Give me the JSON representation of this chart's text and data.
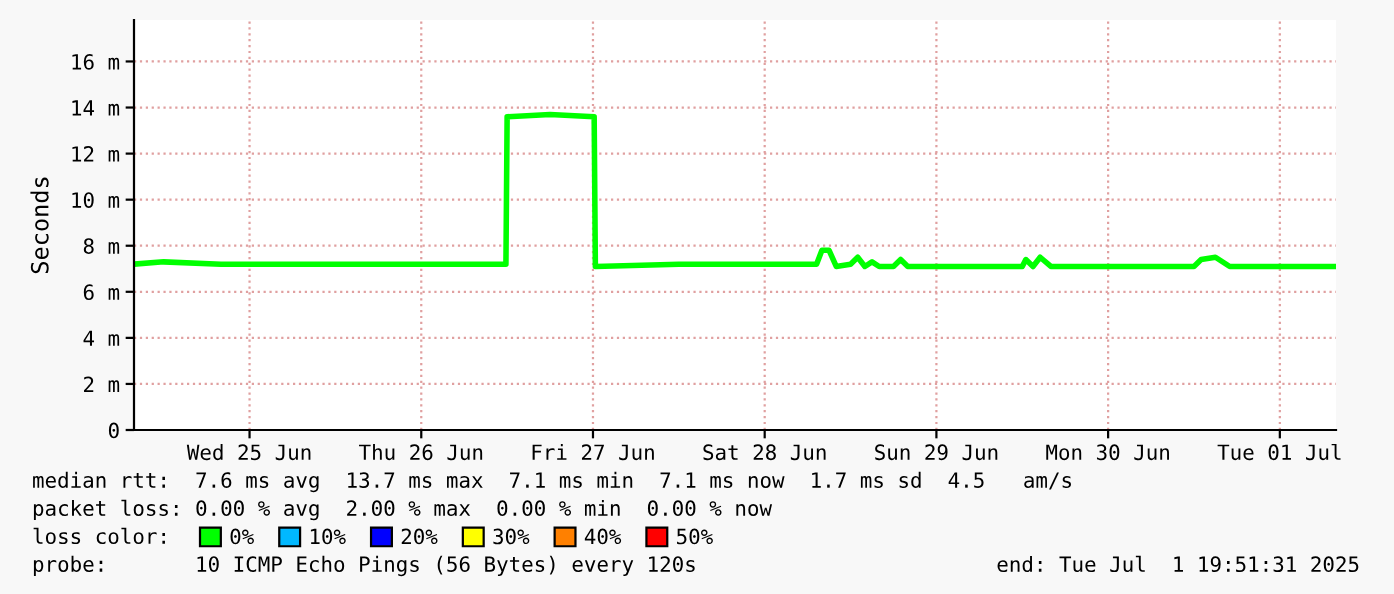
{
  "chart_data": {
    "type": "line",
    "ylabel": "Seconds",
    "legend_title": "loss color:",
    "legend": "bottom",
    "grid": true,
    "marker": "none",
    "line_style": "solid",
    "xlim": [
      "2025-06-24T19:51",
      "2025-07-01T19:51"
    ],
    "xticks": [
      {
        "value": "2025-06-25T12:00",
        "label": "Wed 25 Jun"
      },
      {
        "value": "2025-06-26T12:00",
        "label": "Thu 26 Jun"
      },
      {
        "value": "2025-06-27T12:00",
        "label": "Fri 27 Jun"
      },
      {
        "value": "2025-06-28T12:00",
        "label": "Sat 28 Jun"
      },
      {
        "value": "2025-06-29T12:00",
        "label": "Sun 29 Jun"
      },
      {
        "value": "2025-06-30T12:00",
        "label": "Mon 30 Jun"
      },
      {
        "value": "2025-07-01T12:00",
        "label": "Tue 01 Jul"
      }
    ],
    "ylim": [
      0,
      17.8
    ],
    "yticks": [
      0,
      {
        "value": 2,
        "label": "2 m"
      },
      {
        "value": 4,
        "label": "4 m"
      },
      {
        "value": 6,
        "label": "6 m"
      },
      {
        "value": 8,
        "label": "8 m"
      },
      {
        "value": 10,
        "label": "10 m"
      },
      {
        "value": 12,
        "label": "12 m"
      },
      {
        "value": 14,
        "label": "14 m"
      },
      {
        "value": 16,
        "label": "16 m"
      }
    ],
    "x": [
      "2025-06-24T19:51",
      "2025-06-25T00:00",
      "2025-06-25T08:00",
      "2025-06-25T20:00",
      "2025-06-26T12:00",
      "2025-06-26T23:50",
      "2025-06-27T00:00",
      "2025-06-27T06:00",
      "2025-06-27T12:10",
      "2025-06-27T12:20",
      "2025-06-28T00:00",
      "2025-06-28T19:15",
      "2025-06-28T20:00",
      "2025-06-28T21:00",
      "2025-06-28T22:00",
      "2025-06-29T00:00",
      "2025-06-29T01:00",
      "2025-06-29T02:00",
      "2025-06-29T03:00",
      "2025-06-29T04:00",
      "2025-06-29T06:00",
      "2025-06-29T07:00",
      "2025-06-29T08:00",
      "2025-06-30T00:00",
      "2025-06-30T00:30",
      "2025-06-30T01:30",
      "2025-06-30T02:30",
      "2025-06-30T04:00",
      "2025-07-01T00:00",
      "2025-07-01T01:00",
      "2025-07-01T03:00",
      "2025-07-01T05:00",
      "2025-07-01T19:51"
    ],
    "series": [
      {
        "name": "0%",
        "color": "#00ff00",
        "values": [
          7.2,
          7.3,
          7.2,
          7.2,
          7.2,
          7.2,
          13.6,
          13.7,
          13.6,
          7.1,
          7.2,
          7.2,
          7.8,
          7.8,
          7.1,
          7.2,
          7.5,
          7.1,
          7.3,
          7.1,
          7.1,
          7.4,
          7.1,
          7.1,
          7.4,
          7.1,
          7.5,
          7.1,
          7.1,
          7.4,
          7.5,
          7.1,
          7.1
        ]
      },
      {
        "name": "10%",
        "color": "#00b8ff",
        "values": [
          null,
          null,
          null,
          null,
          null,
          null,
          null,
          null,
          null,
          null,
          null,
          null,
          null,
          null,
          null,
          null,
          null,
          null,
          null,
          null,
          null,
          null,
          null,
          null,
          null,
          null,
          null,
          null,
          null,
          null,
          null,
          null,
          null
        ]
      },
      {
        "name": "20%",
        "color": "#0000ff",
        "values": [
          null,
          null,
          null,
          null,
          null,
          null,
          null,
          null,
          null,
          null,
          null,
          null,
          null,
          null,
          null,
          null,
          null,
          null,
          null,
          null,
          null,
          null,
          null,
          null,
          null,
          null,
          null,
          null,
          null,
          null,
          null,
          null,
          null
        ]
      },
      {
        "name": "30%",
        "color": "#ffff00",
        "values": [
          null,
          null,
          null,
          null,
          null,
          null,
          null,
          null,
          null,
          null,
          null,
          null,
          null,
          null,
          null,
          null,
          null,
          null,
          null,
          null,
          null,
          null,
          null,
          null,
          null,
          null,
          null,
          null,
          null,
          null,
          null,
          null,
          null
        ]
      },
      {
        "name": "40%",
        "color": "#ff8000",
        "values": [
          null,
          null,
          null,
          null,
          null,
          null,
          null,
          null,
          null,
          null,
          null,
          null,
          null,
          null,
          null,
          null,
          null,
          null,
          null,
          null,
          null,
          null,
          null,
          null,
          null,
          null,
          null,
          null,
          null,
          null,
          null,
          null,
          null
        ]
      },
      {
        "name": "50%",
        "color": "#ff0000",
        "values": [
          null,
          null,
          null,
          null,
          null,
          null,
          null,
          null,
          null,
          null,
          null,
          null,
          null,
          null,
          null,
          null,
          null,
          null,
          null,
          null,
          null,
          null,
          null,
          null,
          null,
          null,
          null,
          null,
          null,
          null,
          null,
          null,
          null
        ]
      }
    ],
    "annotations": [
      "median rtt:  7.6 ms avg  13.7 ms max  7.1 ms min  7.1 ms now  1.7 ms sd  4.5   am/s",
      "packet loss: 0.00 % avg  2.00 % max  0.00 % min  0.00 % now",
      "probe:       10 ICMP Echo Pings (56 Bytes) every 120s",
      "end: Tue Jul  1 19:51:31 2025"
    ]
  }
}
